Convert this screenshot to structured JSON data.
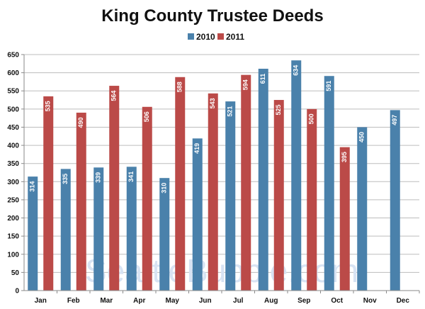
{
  "chart_data": {
    "type": "bar",
    "title": "King County Trustee Deeds",
    "xlabel": "",
    "ylabel": "",
    "categories": [
      "Jan",
      "Feb",
      "Mar",
      "Apr",
      "May",
      "Jun",
      "Jul",
      "Aug",
      "Sep",
      "Oct",
      "Nov",
      "Dec"
    ],
    "series": [
      {
        "name": "2010",
        "color": "#4a81ab",
        "values": [
          314,
          335,
          339,
          341,
          310,
          419,
          521,
          611,
          634,
          591,
          450,
          497
        ]
      },
      {
        "name": "2011",
        "color": "#bb4a48",
        "values": [
          535,
          490,
          564,
          506,
          588,
          543,
          594,
          525,
          500,
          395,
          null,
          null
        ]
      }
    ],
    "data_labels": {
      "2010": [
        "314",
        "335",
        "339",
        "341",
        "310",
        "419",
        "521",
        "611",
        "634",
        "591",
        "450",
        "497"
      ],
      "2011": [
        "535",
        "490",
        "564",
        "506",
        "588",
        "543",
        "594",
        "525",
        "500",
        "395",
        "",
        ""
      ]
    },
    "ylim": [
      0,
      650
    ],
    "yticks": [
      0,
      50,
      100,
      150,
      200,
      250,
      300,
      350,
      400,
      450,
      500,
      550,
      600,
      650
    ],
    "grid": true,
    "legend_position": "top-center",
    "watermark": "SeattleBubble.com"
  }
}
